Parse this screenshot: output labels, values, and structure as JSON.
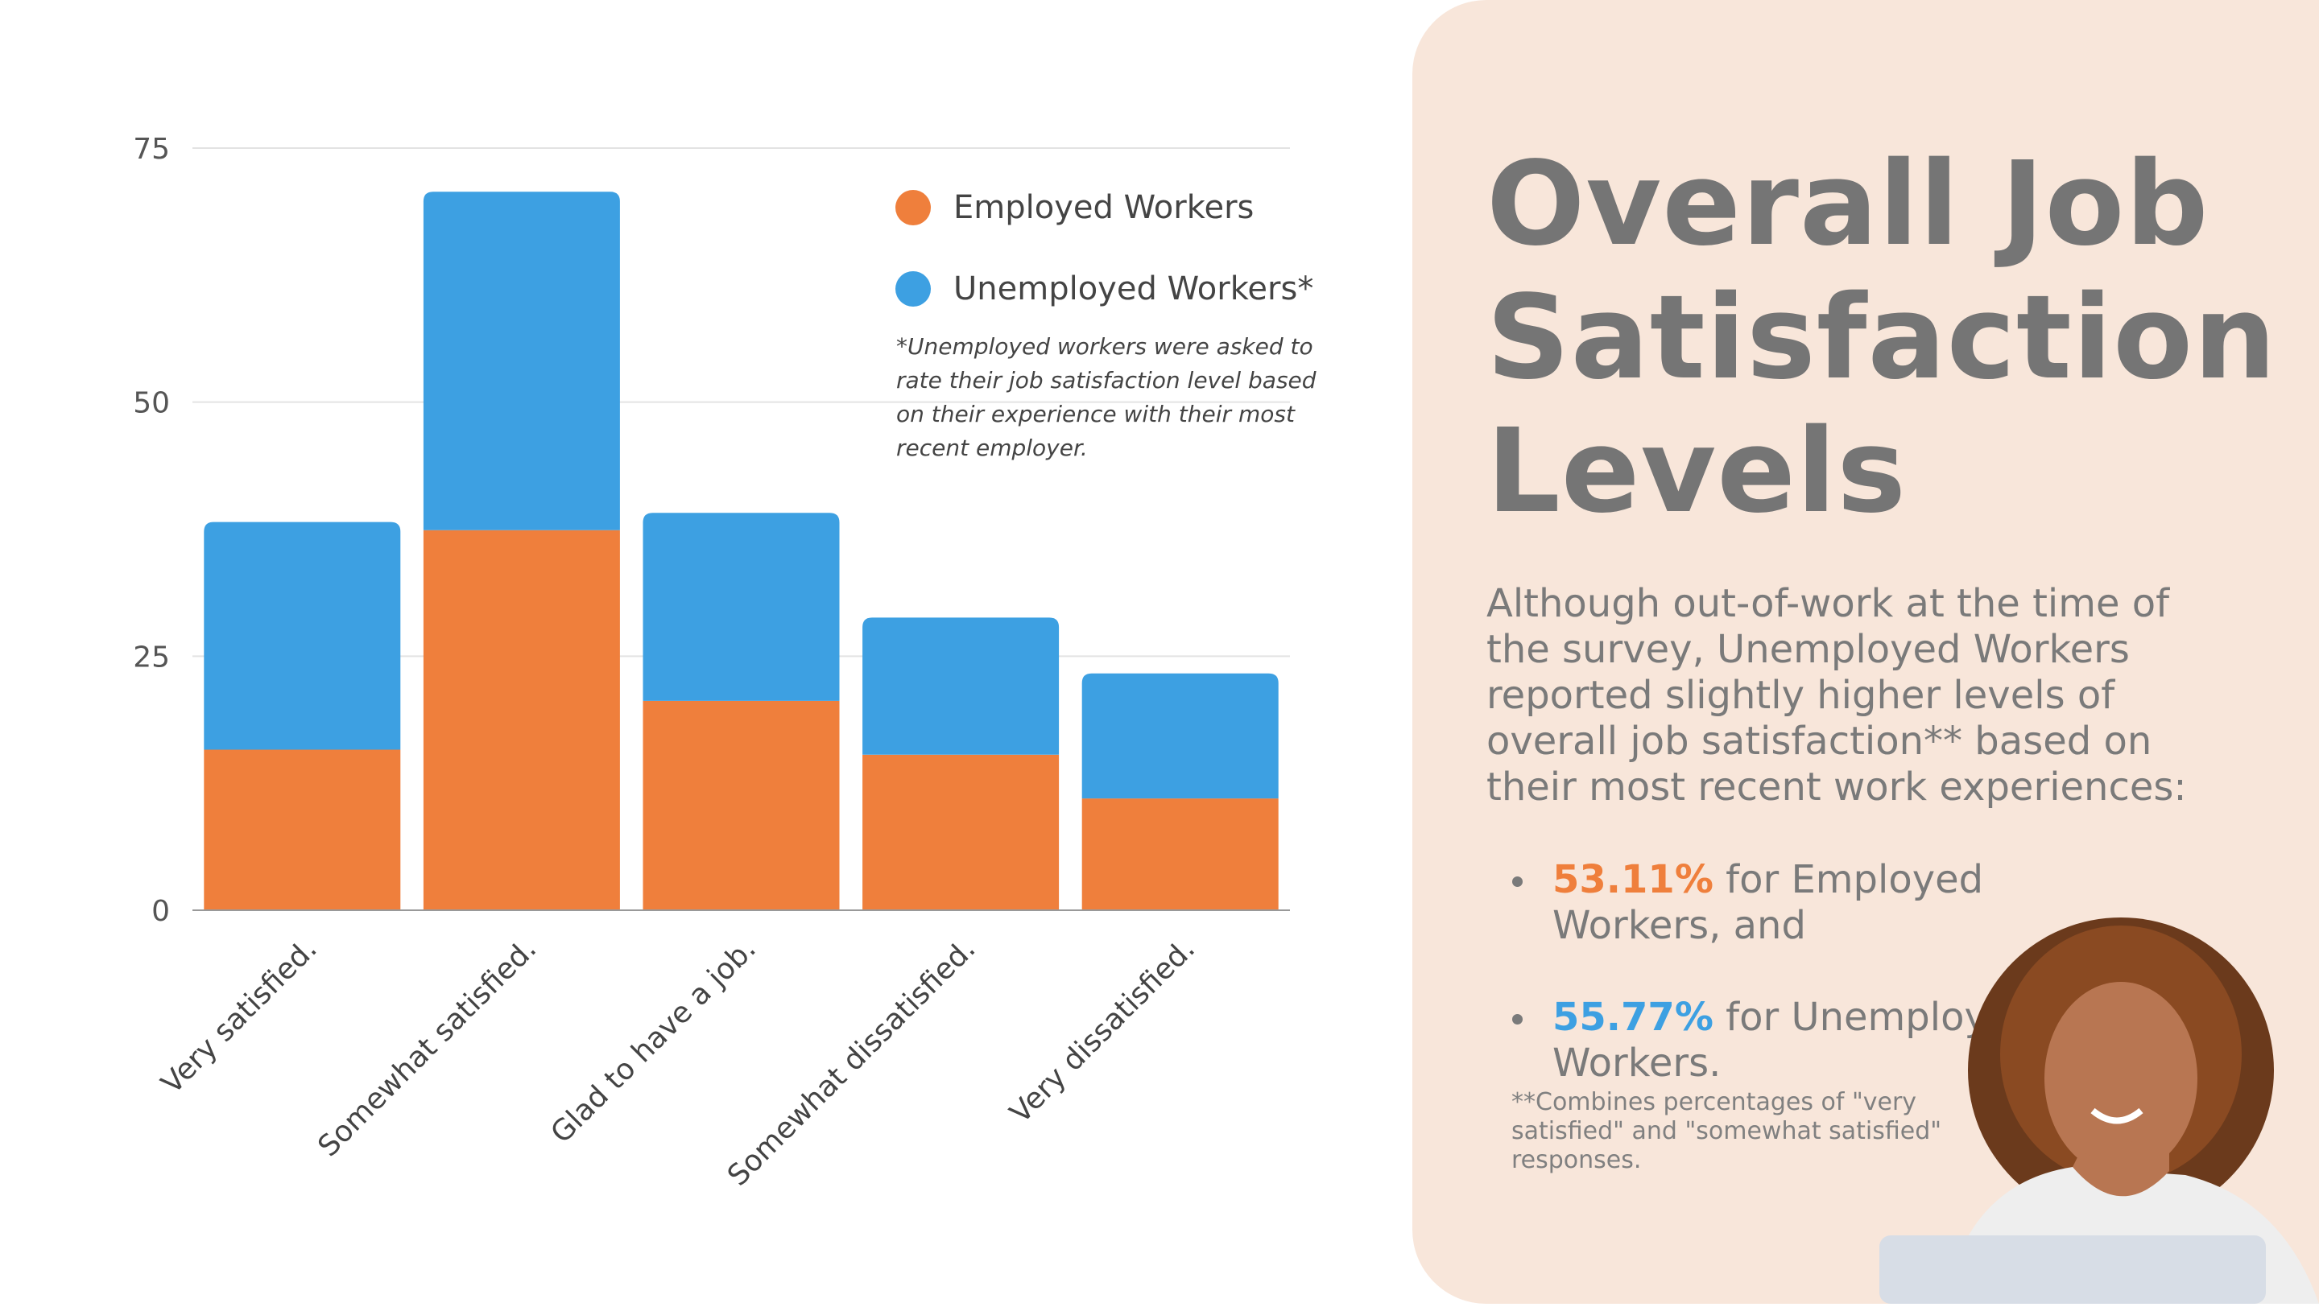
{
  "chart_data": {
    "type": "bar",
    "stacked": true,
    "categories": [
      "Very satisfied.",
      "Somewhat satisfied.",
      "Glad to have a job.",
      "Somewhat dissatisfied.",
      "Very dissatisfied."
    ],
    "series": [
      {
        "name": "Employed Workers",
        "color": "#ef7f3c",
        "values": [
          15.8,
          37.4,
          20.6,
          15.3,
          11.0
        ]
      },
      {
        "name": "Unemployed Workers*",
        "color": "#3da0e2",
        "values": [
          22.4,
          33.3,
          18.5,
          13.5,
          12.3
        ]
      }
    ],
    "yticks": [
      "0",
      "25",
      "50",
      "75"
    ],
    "ylim": [
      0,
      75
    ],
    "grid": true,
    "legend_position": "top-right",
    "note": "*Unemployed workers were asked to rate their job satisfaction level based on their experience with their most recent employer."
  },
  "panel": {
    "title_lines": [
      "Overall Job",
      "Satisfaction",
      "Levels"
    ],
    "paragraph": "Although out-of-work at the time of the survey, Unemployed Workers reported slightly higher levels of overall job satisfaction** based on their most recent work experiences:",
    "bullets": [
      {
        "value": "53.11%",
        "text": " for Employed Workers, and",
        "color": "#ef7f3c"
      },
      {
        "value": "55.77%",
        "text": " for Unemployed Workers.",
        "color": "#3da0e2"
      }
    ],
    "footnote": "**Combines percentages of \"very satisfied\" and \"somewhat satisfied\" responses.",
    "background": "#f8e6da"
  }
}
